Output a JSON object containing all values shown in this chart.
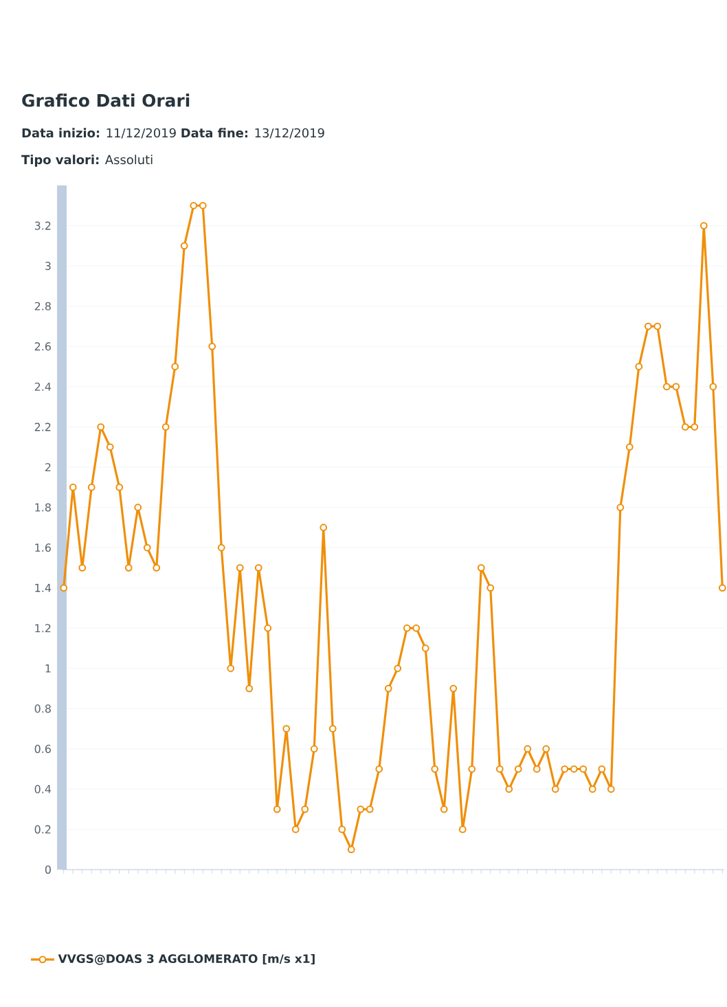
{
  "chart_data": {
    "type": "line",
    "title": "Grafico Dati Orari",
    "subtitle": "**Data inizio:**   11/12/2019   **Data fine:**   13/12/2019",
    "annotations": [
      "**Tipo valori:**   Assoluti"
    ],
    "categories": [
      null,
      null,
      null,
      null,
      null,
      null,
      null,
      null,
      null,
      null,
      null,
      null,
      null,
      null,
      null,
      null,
      null,
      null,
      null,
      null,
      null,
      null,
      null,
      null,
      null,
      null,
      null,
      null,
      null,
      null,
      null,
      null,
      null,
      null,
      null,
      null,
      null,
      null,
      null,
      null,
      null,
      null,
      null,
      null,
      null,
      null,
      null,
      null,
      null,
      null,
      null,
      null,
      null,
      null,
      null,
      null,
      null,
      null,
      null,
      null,
      null,
      null,
      null,
      null,
      null,
      null,
      null,
      null,
      null,
      null,
      null,
      null
    ],
    "series": [
      {
        "name": "VVGS@DOAS 3 AGGLOMERATO [m/s x1]",
        "color": "#ef8f0a",
        "values": [
          1.4,
          1.9,
          1.5,
          1.9,
          2.2,
          2.1,
          1.9,
          1.5,
          1.8,
          1.6,
          1.5,
          2.2,
          2.5,
          3.1,
          3.3,
          3.3,
          2.6,
          1.6,
          1.0,
          1.5,
          0.9,
          1.5,
          1.2,
          0.3,
          0.7,
          0.2,
          0.3,
          0.6,
          1.7,
          0.7,
          0.2,
          0.1,
          0.3,
          0.3,
          0.5,
          0.9,
          1.0,
          1.2,
          1.2,
          1.1,
          0.5,
          0.3,
          0.9,
          0.2,
          0.5,
          1.5,
          1.4,
          0.5,
          0.4,
          0.5,
          0.6,
          0.5,
          0.6,
          0.4,
          0.5,
          0.5,
          0.5,
          0.4,
          0.5,
          0.4,
          1.8,
          2.1,
          2.5,
          2.7,
          2.7,
          2.4,
          2.4,
          2.2,
          2.2,
          3.2,
          2.4,
          1.4
        ]
      }
    ],
    "ylim": [
      0,
      3.4
    ],
    "yticks": [
      0,
      0.2,
      0.4,
      0.6,
      0.8,
      1,
      1.2,
      1.4,
      1.6,
      1.8,
      2,
      2.2,
      2.4,
      2.6,
      2.8,
      3,
      3.2
    ],
    "grid": "y",
    "legend": "bottom",
    "marker": "circle",
    "line_style": "solid"
  }
}
